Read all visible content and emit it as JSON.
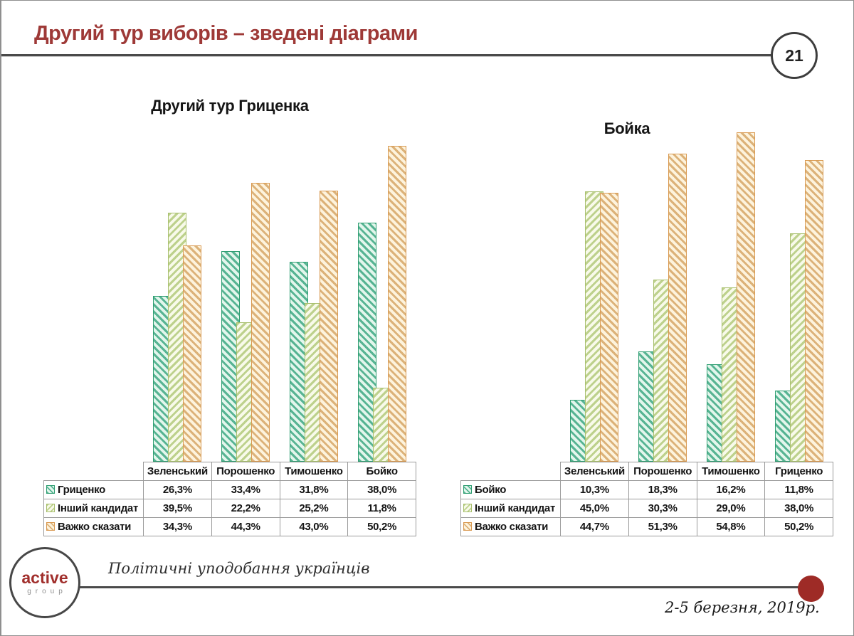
{
  "slide": {
    "title": "Другий тур виборів – зведені діаграми",
    "page_number": "21",
    "footer": {
      "logo_top": "active",
      "logo_bottom": "group",
      "slogan": "Політичні уподобання українців",
      "date": "2-5 березня, 2019р."
    }
  },
  "colors": {
    "title_red": "#9e3937",
    "logo_red": "#a12f2c",
    "dot_red": "#9e2b26",
    "line_gray": "#4a4a4a",
    "series": {
      "green": {
        "stripe": "#57b493",
        "bg": "#e3f6ec",
        "border": "#2f9e72"
      },
      "lightgreen": {
        "stripe": "#bdd18c",
        "bg": "#f8faea",
        "border": "#a8bf6d"
      },
      "orange": {
        "stripe": "#dcb279",
        "bg": "#fdf3dd",
        "border": "#d99a52"
      }
    }
  },
  "chart_data": [
    {
      "type": "bar",
      "title": "Другий тур Гриценка",
      "categories": [
        "Зеленський",
        "Порошенко",
        "Тимошенко",
        "Бойко"
      ],
      "series": [
        {
          "name": "Гриценко",
          "color": "green",
          "hatch": "\\",
          "values": [
            26.3,
            33.4,
            31.8,
            38.0
          ],
          "labels": [
            "26,3%",
            "33,4%",
            "31,8%",
            "38,0%"
          ]
        },
        {
          "name": "Інший кандидат",
          "color": "lightgreen",
          "hatch": "/",
          "values": [
            39.5,
            22.2,
            25.2,
            11.8
          ],
          "labels": [
            "39,5%",
            "22,2%",
            "25,2%",
            "11,8%"
          ]
        },
        {
          "name": "Важко сказати",
          "color": "orange",
          "hatch": "\\",
          "values": [
            34.3,
            44.3,
            43.0,
            50.2
          ],
          "labels": [
            "34,3%",
            "44,3%",
            "43,0%",
            "50,2%"
          ]
        }
      ],
      "value_suffix": "%",
      "ylim": [
        0,
        55
      ],
      "gridlines": false,
      "legend_position": "table-left"
    },
    {
      "type": "bar",
      "title": "Бойка",
      "categories": [
        "Зеленський",
        "Порошенко",
        "Тимошенко",
        "Гриценко"
      ],
      "series": [
        {
          "name": "Бойко",
          "color": "green",
          "hatch": "\\",
          "values": [
            10.3,
            18.3,
            16.2,
            11.8
          ],
          "labels": [
            "10,3%",
            "18,3%",
            "16,2%",
            "11,8%"
          ]
        },
        {
          "name": "Інший кандидат",
          "color": "lightgreen",
          "hatch": "/",
          "values": [
            45.0,
            30.3,
            29.0,
            38.0
          ],
          "labels": [
            "45,0%",
            "30,3%",
            "29,0%",
            "38,0%"
          ]
        },
        {
          "name": "Важко сказати",
          "color": "orange",
          "hatch": "\\",
          "values": [
            44.7,
            51.3,
            54.8,
            50.2
          ],
          "labels": [
            "44,7%",
            "51,3%",
            "54,8%",
            "50,2%"
          ]
        }
      ],
      "value_suffix": "%",
      "ylim": [
        0,
        58
      ],
      "gridlines": false,
      "legend_position": "table-left"
    }
  ]
}
